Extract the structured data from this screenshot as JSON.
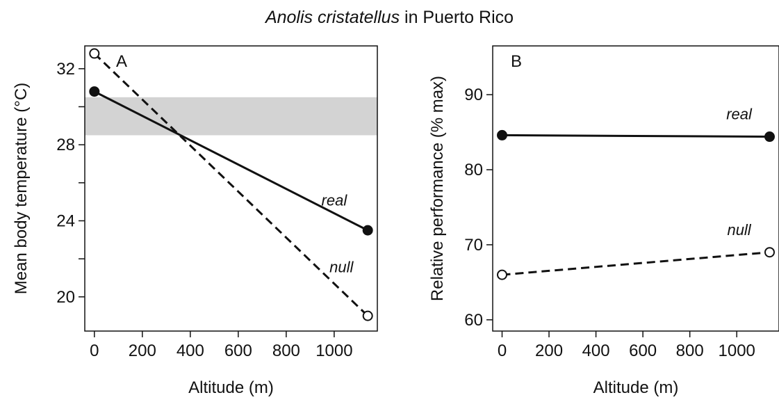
{
  "figure_title": {
    "italic": "Anolis cristatellus",
    "rest": " in Puerto Rico"
  },
  "colors": {
    "line": "#111111",
    "shade": "#d3d3d3",
    "open_marker_fill": "#ffffff"
  },
  "chart_data": [
    {
      "type": "line",
      "panel_label": "A",
      "xlabel": "Altitude (m)",
      "ylabel": "Mean body temperature (°C)",
      "xlim": [
        -40,
        1180
      ],
      "ylim": [
        18.2,
        33.2
      ],
      "x_ticks": [
        0,
        200,
        400,
        600,
        800,
        1000
      ],
      "y_ticks": [
        20,
        24,
        28,
        32
      ],
      "y_minor_ticks": [
        22,
        26,
        30
      ],
      "shaded_band": {
        "y_from": 28.5,
        "y_to": 30.5
      },
      "series": [
        {
          "name": "real",
          "style": "solid",
          "marker": "filled",
          "x": [
            0,
            1140
          ],
          "y": [
            30.8,
            23.5
          ]
        },
        {
          "name": "null",
          "style": "dashed",
          "marker": "open",
          "x": [
            0,
            1140
          ],
          "y": [
            32.8,
            19.0
          ]
        }
      ],
      "annotations": [
        {
          "text": "real",
          "x": 1000,
          "y": 24.8
        },
        {
          "text": "null",
          "x": 1030,
          "y": 21.3
        }
      ],
      "grid": false
    },
    {
      "type": "line",
      "panel_label": "B",
      "xlabel": "Altitude (m)",
      "ylabel": "Relative performance (% max)",
      "xlim": [
        -40,
        1180
      ],
      "ylim": [
        58.5,
        96.5
      ],
      "x_ticks": [
        0,
        200,
        400,
        600,
        800,
        1000
      ],
      "y_ticks": [
        60,
        70,
        80,
        90
      ],
      "series": [
        {
          "name": "real",
          "style": "solid",
          "marker": "filled",
          "x": [
            0,
            1140
          ],
          "y": [
            84.6,
            84.4
          ]
        },
        {
          "name": "null",
          "style": "dashed",
          "marker": "open",
          "x": [
            0,
            1140
          ],
          "y": [
            66.0,
            69.0
          ]
        }
      ],
      "annotations": [
        {
          "text": "real",
          "x": 1010,
          "y": 86.7
        },
        {
          "text": "null",
          "x": 1010,
          "y": 71.3
        }
      ],
      "grid": false
    }
  ]
}
